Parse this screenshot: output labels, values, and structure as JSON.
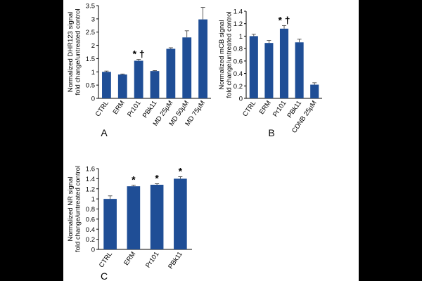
{
  "figure_bg": "#ffffff",
  "page_bg": "#000000",
  "bar_color": "#1f4e96",
  "chart_data": [
    {
      "panel": "A",
      "type": "bar",
      "ylabel": [
        "Normalized DHR123 signal",
        "fold change/untreated control"
      ],
      "categories": [
        "CTRL",
        "ERM",
        "Pr101",
        "PBk11",
        "MD 25µM",
        "MD 50µM",
        "MD 75µM"
      ],
      "values": [
        1.0,
        0.9,
        1.42,
        1.03,
        1.87,
        2.3,
        2.98
      ],
      "errors": [
        0.03,
        0.02,
        0.05,
        0.02,
        0.04,
        0.25,
        0.45
      ],
      "annotations": [
        {
          "category": "Pr101",
          "text": "* †"
        }
      ],
      "ylim": [
        0,
        3.5
      ],
      "yticks": [
        "0",
        "0.5",
        "1",
        "1.5",
        "2",
        "2.5",
        "3",
        "3.5"
      ]
    },
    {
      "panel": "B",
      "type": "bar",
      "ylabel": [
        "Normalized mCB signal",
        "fold change/untreated control"
      ],
      "categories": [
        "CTRL",
        "ERM",
        "Pr101",
        "PBk11",
        "CDNB 25µM"
      ],
      "values": [
        1.0,
        0.89,
        1.12,
        0.9,
        0.22
      ],
      "errors": [
        0.03,
        0.04,
        0.05,
        0.05,
        0.03
      ],
      "annotations": [
        {
          "category": "Pr101",
          "text": "* †"
        }
      ],
      "ylim": [
        0,
        1.4
      ],
      "yticks": [
        "0",
        "0.2",
        "0.4",
        "0.6",
        "0.8",
        "1",
        "1.2",
        "1.4"
      ]
    },
    {
      "panel": "C",
      "type": "bar",
      "ylabel": [
        "Normalized NR signal",
        "fold change/untreated control"
      ],
      "categories": [
        "CTRL",
        "ERM",
        "Pr101",
        "PBk11"
      ],
      "values": [
        1.0,
        1.25,
        1.28,
        1.4
      ],
      "errors": [
        0.06,
        0.02,
        0.02,
        0.04
      ],
      "annotations": [
        {
          "category": "ERM",
          "text": "*"
        },
        {
          "category": "Pr101",
          "text": "*"
        },
        {
          "category": "PBk11",
          "text": "*"
        }
      ],
      "ylim": [
        0,
        1.6
      ],
      "yticks": [
        "0",
        "0.2",
        "0.4",
        "0.6",
        "0.8",
        "1",
        "1.2",
        "1.4",
        "1.6"
      ]
    }
  ]
}
